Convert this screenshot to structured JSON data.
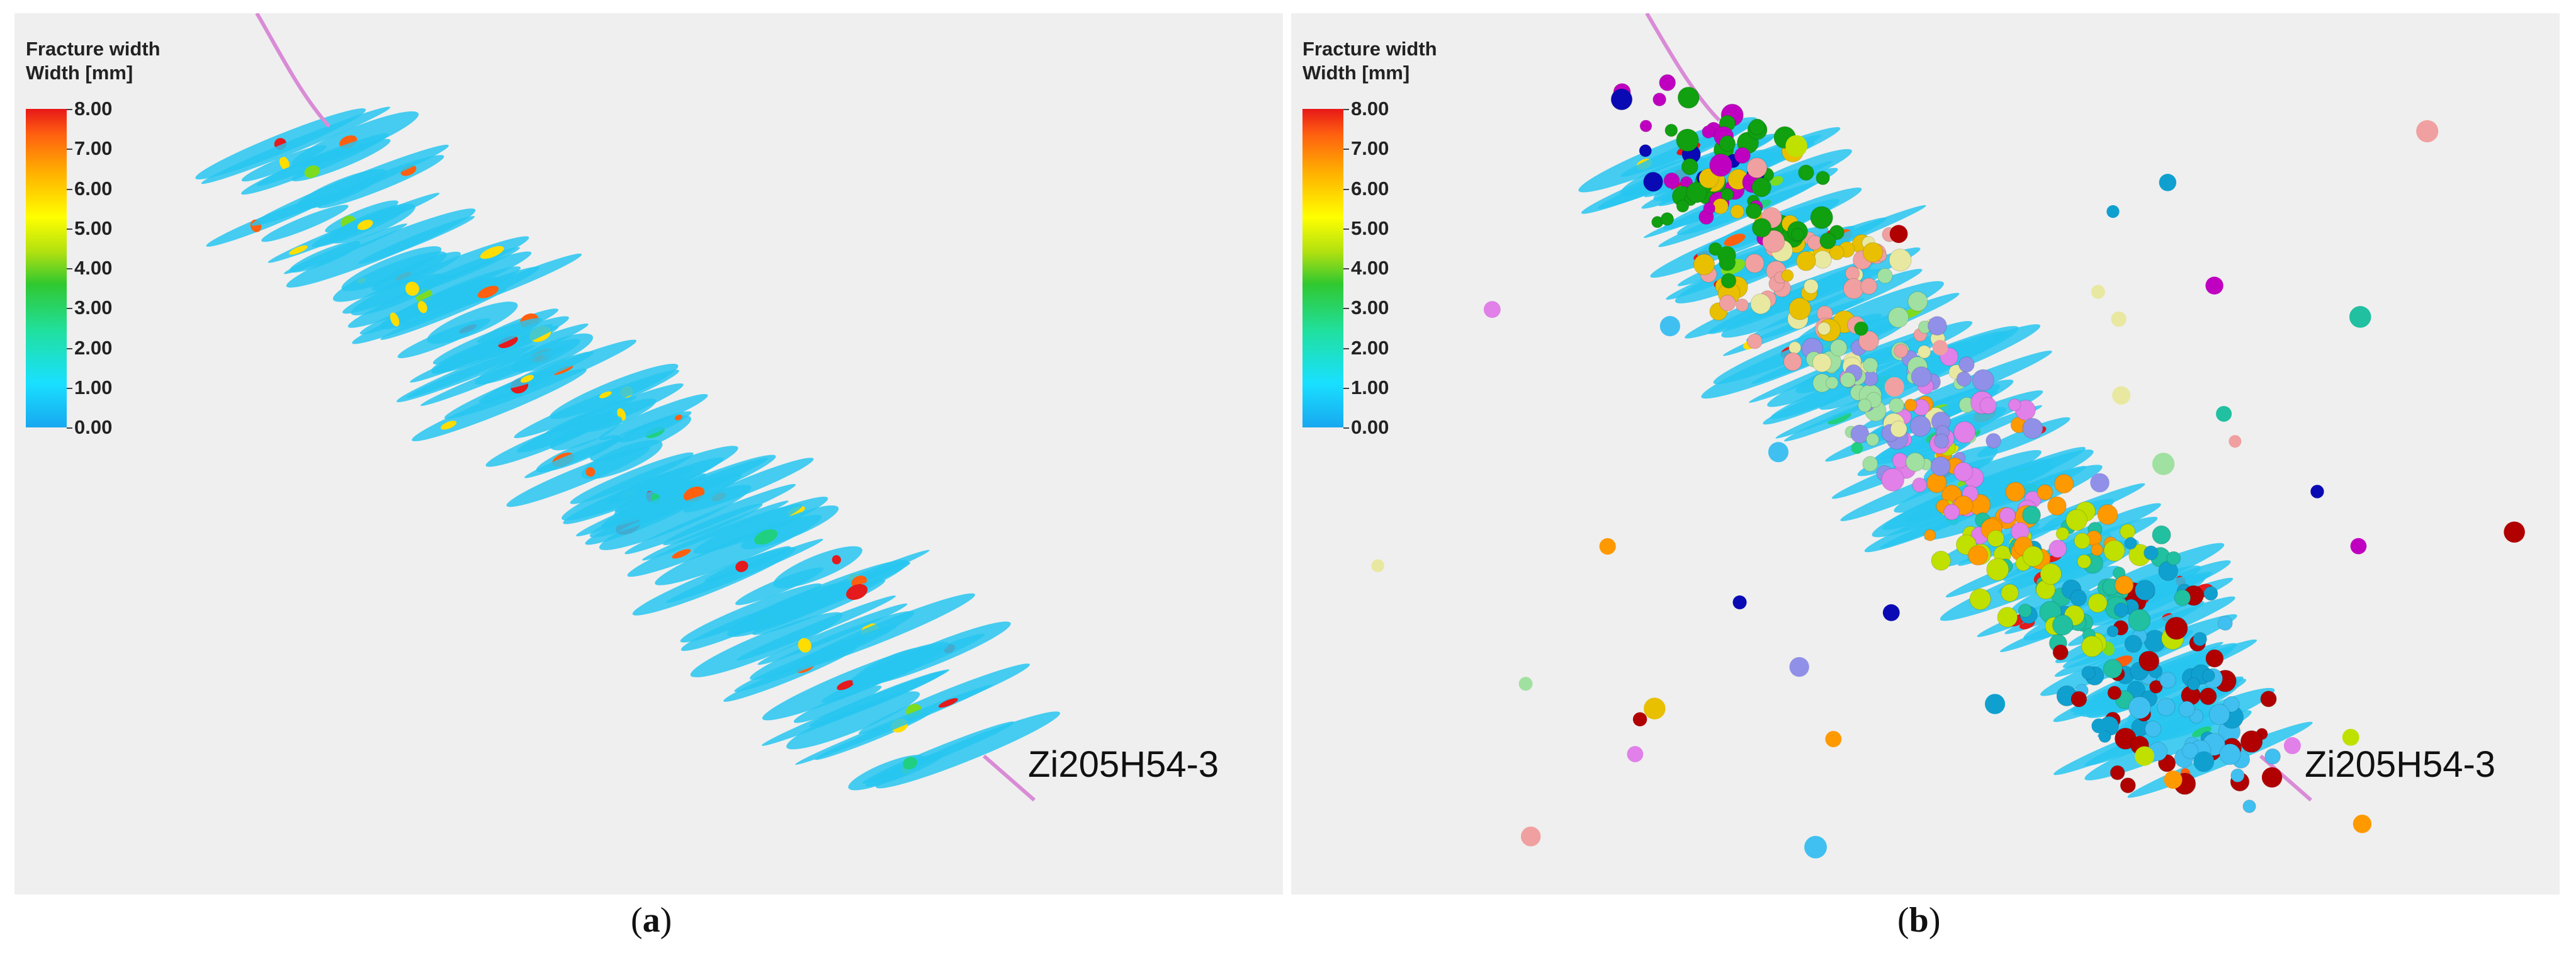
{
  "panels": [
    {
      "id": "a",
      "legend_title": "Fracture width",
      "legend_unit": "Width [mm]",
      "ticks": [
        "8.00",
        "7.00",
        "6.00",
        "5.00",
        "4.00",
        "3.00",
        "2.00",
        "1.00",
        "0.00"
      ],
      "well_label": "Zi205H54-3",
      "caption_letter": "a",
      "microseismic_events": false
    },
    {
      "id": "b",
      "legend_title": "Fracture width",
      "legend_unit": "Width [mm]",
      "ticks": [
        "8.00",
        "7.00",
        "6.00",
        "5.00",
        "4.00",
        "3.00",
        "2.00",
        "1.00",
        "0.00"
      ],
      "well_label": "Zi205H54-3",
      "caption_letter": "b",
      "microseismic_events": true
    }
  ],
  "colors": {
    "background": "#efefef",
    "fracture_base": "#27c6f0",
    "fracture_high": "#e41a1c",
    "wellbore": "#d98bd6"
  },
  "colorbar_range_mm": [
    0,
    8
  ]
}
